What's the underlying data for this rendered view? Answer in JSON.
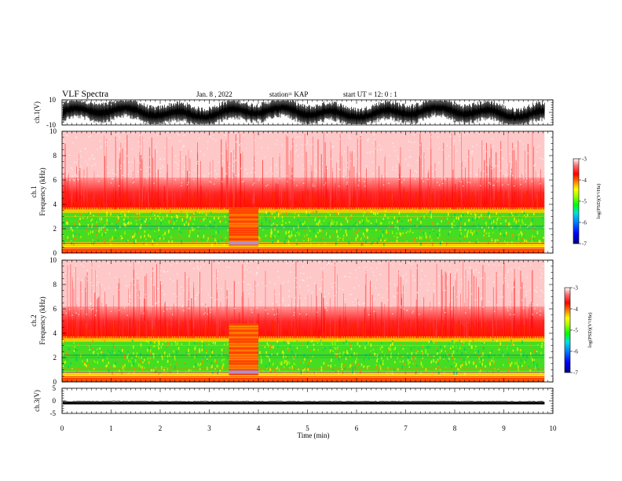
{
  "header": {
    "title": "VLF Spectra",
    "date": "Jan. 8 , 2022",
    "station": "station= KAP",
    "start": "start  UT =   12: 0  : 1"
  },
  "colors": {
    "spectrogram": [
      "#00007f",
      "#0000ff",
      "#007fff",
      "#00e0e0",
      "#30d030",
      "#00ff00",
      "#a0ff00",
      "#ffff00",
      "#ffb000",
      "#ff6000",
      "#ff0000",
      "#ffffff"
    ],
    "trace": "#000000"
  },
  "chart_data": [
    {
      "type": "line",
      "panel": "waveform-ch1",
      "ylabel": "ch.1(V)",
      "ylim": [
        -10,
        10
      ],
      "yticks": [
        "10",
        "-10"
      ],
      "xlim": [
        0,
        10
      ],
      "data_end_min": 9.83,
      "envelope_v": [
        -8.5,
        8.5
      ]
    },
    {
      "type": "heatmap",
      "panel": "spectrogram-ch1",
      "ylabel": "ch.1",
      "ylabel2": "Frequency (kHz)",
      "ylim": [
        0,
        10
      ],
      "yticks": [
        "0",
        "2",
        "4",
        "6",
        "8",
        "10"
      ],
      "xlim": [
        0,
        10
      ],
      "data_end_min": 9.83,
      "disturbance_min": [
        3.4,
        4.0
      ],
      "colorbar": {
        "label": "log(PSD)(V²/Hz)",
        "range": [
          -7,
          -3
        ],
        "ticks": [
          "-3",
          "-4",
          "-5",
          "-6",
          "-7"
        ]
      }
    },
    {
      "type": "heatmap",
      "panel": "spectrogram-ch2",
      "ylabel": "ch.2",
      "ylabel2": "Frequency (kHz)",
      "ylim": [
        0,
        10
      ],
      "yticks": [
        "0",
        "2",
        "4",
        "6",
        "8",
        "10"
      ],
      "xlim": [
        0,
        10
      ],
      "data_end_min": 9.83,
      "disturbance_min": [
        3.4,
        4.0
      ],
      "colorbar": {
        "label": "log(PSD)(V²/Hz)",
        "range": [
          -7,
          -3
        ],
        "ticks": [
          "-3",
          "-4",
          "-5",
          "-6",
          "-7"
        ]
      }
    },
    {
      "type": "line",
      "panel": "waveform-ch3",
      "ylabel": "ch.3(V)",
      "ylim": [
        -5,
        5
      ],
      "yticks": [
        "5",
        "0",
        "-5"
      ],
      "xlim": [
        0,
        10
      ],
      "data_end_min": 9.83,
      "envelope_v": [
        -1.4,
        -0.4
      ]
    }
  ],
  "xaxis": {
    "label": "Time (min)",
    "ticks": [
      "0",
      "1",
      "2",
      "3",
      "4",
      "5",
      "6",
      "7",
      "8",
      "9",
      "10"
    ]
  }
}
